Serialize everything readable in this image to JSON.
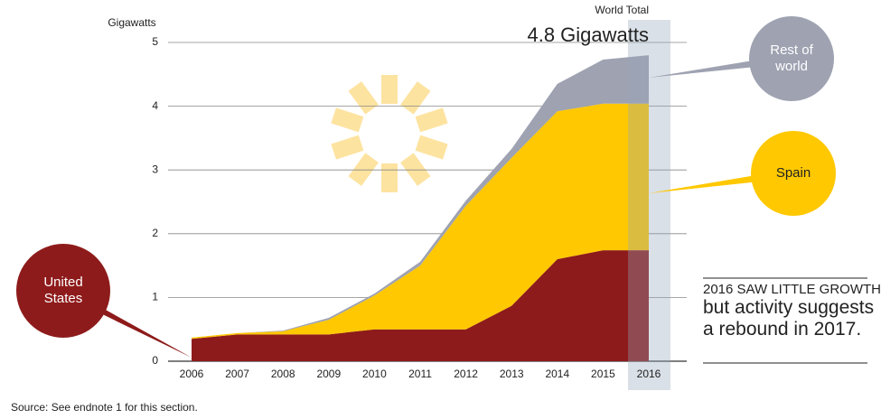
{
  "chart_data": {
    "type": "stacked-area",
    "y_label": "Gigawatts",
    "categories": [
      "2006",
      "2007",
      "2008",
      "2009",
      "2010",
      "2011",
      "2012",
      "2013",
      "2014",
      "2015",
      "2016"
    ],
    "series": [
      {
        "name": "United States",
        "color": "#8e1b1b",
        "values": [
          0.35,
          0.42,
          0.42,
          0.42,
          0.5,
          0.5,
          0.5,
          0.87,
          1.6,
          1.74,
          1.74
        ]
      },
      {
        "name": "Spain",
        "color": "#ffc800",
        "values": [
          0.02,
          0.02,
          0.05,
          0.23,
          0.53,
          1.0,
          1.94,
          2.32,
          2.32,
          2.3,
          2.3
        ]
      },
      {
        "name": "Rest of world",
        "color": "#9ea2b1",
        "values": [
          0.0,
          0.0,
          0.01,
          0.03,
          0.03,
          0.06,
          0.08,
          0.14,
          0.43,
          0.69,
          0.76
        ]
      }
    ],
    "ylim": [
      0,
      5
    ],
    "yticks": [
      0,
      1,
      2,
      3,
      4,
      5
    ],
    "grid": true,
    "highlight_category": "2016",
    "total_title": "World Total",
    "total_label": "4.8 Gigawatts",
    "note": [
      "2016 SAW LITTLE GROWTH,",
      "but activity suggests",
      "a rebound in 2017."
    ],
    "source": "Source: See endnote 1 for this section."
  }
}
